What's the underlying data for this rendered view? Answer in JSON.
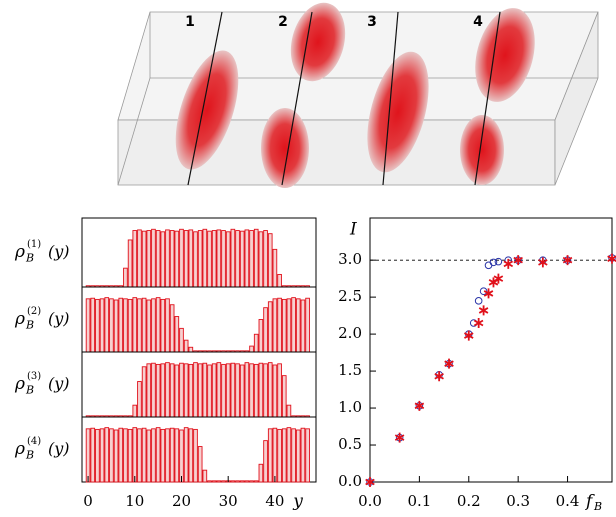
{
  "image_labels": [
    "1",
    "2",
    "3",
    "4"
  ],
  "chart_data": [
    {
      "type": "bar",
      "x_label": "y",
      "x": [
        0,
        1,
        2,
        3,
        4,
        5,
        6,
        7,
        8,
        9,
        10,
        11,
        12,
        13,
        14,
        15,
        16,
        17,
        18,
        19,
        20,
        21,
        22,
        23,
        24,
        25,
        26,
        27,
        28,
        29,
        30,
        31,
        32,
        33,
        34,
        35,
        36,
        37,
        38,
        39,
        40,
        41,
        42,
        43,
        44,
        45,
        46,
        47
      ],
      "xlim": [
        -1.3,
        48.8
      ],
      "xticks": [
        0,
        10,
        20,
        30,
        40
      ],
      "ylim": [
        0,
        1.1
      ],
      "color": "#e0101a",
      "panels": [
        {
          "y_label": {
            "base": "ρ",
            "sub": "B",
            "sup": "(1)",
            "arg": "(y)"
          },
          "values": [
            0.02,
            0.02,
            0.02,
            0.02,
            0.02,
            0.02,
            0.02,
            0.02,
            0.3,
            0.75,
            0.9,
            0.91,
            0.89,
            0.9,
            0.92,
            0.9,
            0.88,
            0.91,
            0.9,
            0.89,
            0.92,
            0.9,
            0.91,
            0.88,
            0.9,
            0.92,
            0.89,
            0.9,
            0.91,
            0.9,
            0.88,
            0.92,
            0.9,
            0.89,
            0.91,
            0.9,
            0.92,
            0.88,
            0.9,
            0.85,
            0.6,
            0.2,
            0.02,
            0.02,
            0.02,
            0.02,
            0.02,
            0.02
          ]
        },
        {
          "y_label": {
            "base": "ρ",
            "sub": "B",
            "sup": "(2)",
            "arg": "(y)"
          },
          "values": [
            0.9,
            0.91,
            0.89,
            0.9,
            0.92,
            0.9,
            0.88,
            0.91,
            0.9,
            0.89,
            0.92,
            0.9,
            0.91,
            0.88,
            0.9,
            0.92,
            0.89,
            0.9,
            0.8,
            0.6,
            0.4,
            0.2,
            0.08,
            0.02,
            0.02,
            0.02,
            0.02,
            0.02,
            0.02,
            0.02,
            0.02,
            0.02,
            0.02,
            0.02,
            0.02,
            0.1,
            0.3,
            0.55,
            0.75,
            0.85,
            0.9,
            0.91,
            0.89,
            0.9,
            0.92,
            0.9,
            0.88,
            0.91
          ]
        },
        {
          "y_label": {
            "base": "ρ",
            "sub": "B",
            "sup": "(3)",
            "arg": "(y)"
          },
          "values": [
            0.02,
            0.02,
            0.02,
            0.02,
            0.02,
            0.02,
            0.02,
            0.02,
            0.02,
            0.02,
            0.2,
            0.6,
            0.85,
            0.9,
            0.91,
            0.89,
            0.9,
            0.92,
            0.9,
            0.88,
            0.91,
            0.9,
            0.89,
            0.92,
            0.9,
            0.91,
            0.88,
            0.9,
            0.92,
            0.89,
            0.9,
            0.91,
            0.9,
            0.88,
            0.92,
            0.9,
            0.89,
            0.91,
            0.9,
            0.92,
            0.88,
            0.9,
            0.7,
            0.2,
            0.02,
            0.02,
            0.02,
            0.02
          ]
        },
        {
          "y_label": {
            "base": "ρ",
            "sub": "B",
            "sup": "(4)",
            "arg": "(y)"
          },
          "values": [
            0.9,
            0.91,
            0.89,
            0.9,
            0.92,
            0.9,
            0.88,
            0.91,
            0.9,
            0.89,
            0.92,
            0.9,
            0.91,
            0.88,
            0.9,
            0.92,
            0.89,
            0.9,
            0.91,
            0.9,
            0.88,
            0.92,
            0.9,
            0.89,
            0.6,
            0.2,
            0.02,
            0.02,
            0.02,
            0.02,
            0.02,
            0.02,
            0.02,
            0.02,
            0.02,
            0.02,
            0.02,
            0.3,
            0.7,
            0.9,
            0.91,
            0.89,
            0.9,
            0.92,
            0.9,
            0.88,
            0.91,
            0.9
          ]
        }
      ]
    },
    {
      "type": "scatter",
      "x_label": {
        "base": "f",
        "sub": "B"
      },
      "y_label": "I",
      "xlim": [
        0,
        0.49
      ],
      "ylim": [
        0,
        3.57
      ],
      "xticks": [
        {
          "value": 0,
          "label": "0.0"
        },
        {
          "value": 0.1,
          "label": "0.1"
        },
        {
          "value": 0.2,
          "label": "0.2"
        },
        {
          "value": 0.3,
          "label": "0.3"
        },
        {
          "value": 0.4,
          "label": "0.4"
        }
      ],
      "yticks": [
        {
          "value": 0,
          "label": "0.0"
        },
        {
          "value": 0.5,
          "label": "0.5"
        },
        {
          "value": 1,
          "label": "1.0"
        },
        {
          "value": 1.5,
          "label": "1.5"
        },
        {
          "value": 2,
          "label": "2.0"
        },
        {
          "value": 2.5,
          "label": "2.5"
        },
        {
          "value": 3,
          "label": "3.0"
        }
      ],
      "hline": 3,
      "series": [
        {
          "marker": "circle",
          "color": "#2b35a8",
          "x": [
            0,
            0.06,
            0.1,
            0.14,
            0.16,
            0.2,
            0.21,
            0.22,
            0.23,
            0.24,
            0.25,
            0.26,
            0.28,
            0.3,
            0.35,
            0.4,
            0.49
          ],
          "values": [
            0,
            0.6,
            1.03,
            1.45,
            1.6,
            2.0,
            2.15,
            2.45,
            2.58,
            2.93,
            2.97,
            2.98,
            3.0,
            3.0,
            3.0,
            3.0,
            3.03
          ]
        },
        {
          "marker": "star",
          "color": "#e0101a",
          "x": [
            0,
            0.06,
            0.1,
            0.14,
            0.16,
            0.2,
            0.22,
            0.23,
            0.24,
            0.25,
            0.26,
            0.28,
            0.3,
            0.35,
            0.4,
            0.49
          ],
          "values": [
            0,
            0.6,
            1.03,
            1.43,
            1.6,
            1.98,
            2.15,
            2.32,
            2.55,
            2.7,
            2.75,
            2.95,
            3.0,
            2.97,
            3.0,
            3.02
          ]
        }
      ]
    }
  ]
}
